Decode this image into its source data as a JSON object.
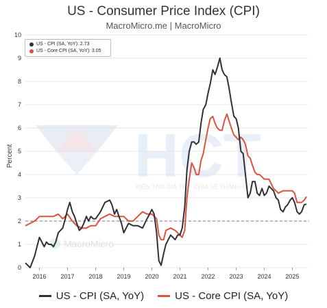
{
  "header": {
    "title": "US - Consumer Price Index (CPI)",
    "subtitle": "MacroMicro.me | MacroMicro"
  },
  "watermark": {
    "brand": "HCT",
    "tagline": "KIẾN TẠO GIÁ TRỊ - CHIA SẺ THÀNH CÔNG",
    "source_logo": "MacroMicro"
  },
  "legend_box": {
    "cpi": "US - CPI (SA, YoY): 2.73",
    "core": "US - Core CPI (SA, YoY): 3.05"
  },
  "colors": {
    "cpi": "#2f2f35",
    "core": "#d9533d",
    "reference_line": "#777777",
    "grid": "#e6e6e6"
  },
  "chart_data": {
    "type": "line",
    "title": "US - Consumer Price Index (CPI)",
    "subtitle": "MacroMicro.me | MacroMicro",
    "ylabel": "Percent",
    "xlabel": "",
    "ylim": [
      0,
      10
    ],
    "y_ticks": [
      "0",
      "1",
      "2",
      "3",
      "4",
      "5",
      "6",
      "7",
      "8",
      "9",
      "10"
    ],
    "x_range": [
      2015.5,
      2025.55
    ],
    "x_ticks": [
      "2016",
      "2017",
      "2018",
      "2019",
      "2020",
      "2021",
      "2022",
      "2023",
      "2024",
      "2025"
    ],
    "reference_line": 2,
    "grid": "horizontal",
    "legend_position": "top-left",
    "series": [
      {
        "name": "US - CPI (SA, YoY)",
        "latest": 2.73,
        "x": [
          2015.5,
          2015.67,
          2015.83,
          2016.0,
          2016.17,
          2016.25,
          2016.33,
          2016.42,
          2016.5,
          2016.58,
          2016.67,
          2016.75,
          2016.83,
          2016.92,
          2017.0,
          2017.08,
          2017.17,
          2017.25,
          2017.33,
          2017.42,
          2017.5,
          2017.58,
          2017.67,
          2017.75,
          2017.83,
          2017.92,
          2018.0,
          2018.17,
          2018.33,
          2018.5,
          2018.58,
          2018.67,
          2018.75,
          2018.83,
          2018.92,
          2019.0,
          2019.17,
          2019.33,
          2019.5,
          2019.67,
          2019.83,
          2019.92,
          2020.0,
          2020.08,
          2020.17,
          2020.25,
          2020.33,
          2020.42,
          2020.5,
          2020.67,
          2020.83,
          2020.92,
          2021.0,
          2021.08,
          2021.17,
          2021.25,
          2021.33,
          2021.42,
          2021.5,
          2021.58,
          2021.67,
          2021.75,
          2021.83,
          2021.92,
          2022.0,
          2022.08,
          2022.17,
          2022.25,
          2022.33,
          2022.42,
          2022.5,
          2022.58,
          2022.67,
          2022.75,
          2022.83,
          2022.92,
          2023.0,
          2023.08,
          2023.17,
          2023.25,
          2023.33,
          2023.42,
          2023.5,
          2023.58,
          2023.67,
          2023.75,
          2023.83,
          2023.92,
          2024.0,
          2024.08,
          2024.17,
          2024.25,
          2024.33,
          2024.42,
          2024.5,
          2024.58,
          2024.67,
          2024.75,
          2024.83,
          2024.92,
          2025.0,
          2025.08,
          2025.17,
          2025.25,
          2025.33,
          2025.42,
          2025.5
        ],
        "values": [
          0.2,
          0.0,
          0.5,
          1.3,
          0.9,
          1.1,
          1.0,
          1.0,
          0.9,
          1.1,
          1.5,
          1.6,
          1.7,
          2.1,
          2.5,
          2.8,
          2.4,
          2.2,
          1.9,
          1.6,
          1.7,
          1.9,
          2.2,
          2.0,
          2.2,
          2.1,
          2.1,
          2.4,
          2.8,
          2.9,
          2.7,
          2.3,
          2.5,
          2.2,
          1.9,
          1.5,
          1.9,
          1.8,
          1.8,
          1.7,
          2.1,
          2.3,
          2.5,
          2.3,
          1.5,
          0.3,
          0.1,
          0.6,
          1.0,
          1.4,
          1.2,
          1.4,
          1.4,
          1.7,
          2.6,
          4.2,
          5.0,
          5.4,
          5.4,
          5.3,
          5.4,
          6.2,
          6.8,
          7.0,
          7.5,
          7.9,
          8.5,
          8.3,
          8.6,
          9.0,
          8.5,
          8.3,
          8.2,
          7.7,
          7.1,
          6.5,
          6.4,
          6.0,
          5.0,
          4.9,
          4.0,
          3.0,
          3.2,
          3.7,
          3.7,
          3.2,
          3.1,
          3.4,
          3.1,
          3.2,
          3.5,
          3.4,
          3.3,
          3.0,
          2.9,
          2.5,
          2.4,
          2.6,
          2.7,
          2.9,
          3.0,
          2.8,
          2.4,
          2.3,
          2.4,
          2.7,
          2.73
        ]
      },
      {
        "name": "US - Core CPI (SA, YoY)",
        "latest": 3.05,
        "x": [
          2015.5,
          2015.67,
          2015.83,
          2016.0,
          2016.17,
          2016.33,
          2016.5,
          2016.67,
          2016.83,
          2017.0,
          2017.17,
          2017.33,
          2017.5,
          2017.67,
          2017.83,
          2018.0,
          2018.17,
          2018.33,
          2018.5,
          2018.67,
          2018.83,
          2019.0,
          2019.17,
          2019.33,
          2019.5,
          2019.67,
          2019.83,
          2020.0,
          2020.17,
          2020.25,
          2020.33,
          2020.42,
          2020.5,
          2020.67,
          2020.83,
          2021.0,
          2021.08,
          2021.17,
          2021.25,
          2021.33,
          2021.42,
          2021.5,
          2021.58,
          2021.67,
          2021.75,
          2021.83,
          2021.92,
          2022.0,
          2022.08,
          2022.17,
          2022.25,
          2022.33,
          2022.42,
          2022.5,
          2022.58,
          2022.67,
          2022.75,
          2022.83,
          2022.92,
          2023.0,
          2023.08,
          2023.17,
          2023.25,
          2023.33,
          2023.42,
          2023.5,
          2023.58,
          2023.67,
          2023.75,
          2023.83,
          2023.92,
          2024.0,
          2024.17,
          2024.33,
          2024.5,
          2024.67,
          2024.83,
          2025.0,
          2025.08,
          2025.17,
          2025.25,
          2025.33,
          2025.42,
          2025.5
        ],
        "values": [
          1.8,
          1.9,
          2.0,
          2.2,
          2.2,
          2.2,
          2.2,
          2.3,
          2.1,
          2.3,
          2.0,
          1.8,
          1.7,
          1.7,
          1.8,
          1.8,
          2.1,
          2.2,
          2.3,
          2.2,
          2.2,
          2.2,
          2.0,
          2.0,
          2.2,
          2.4,
          2.3,
          2.3,
          2.1,
          1.4,
          1.2,
          1.2,
          1.6,
          1.7,
          1.6,
          1.4,
          1.3,
          1.6,
          3.0,
          3.8,
          4.5,
          4.3,
          4.0,
          4.0,
          4.6,
          4.9,
          5.5,
          6.0,
          6.4,
          6.5,
          6.2,
          6.0,
          5.9,
          5.9,
          6.3,
          6.6,
          6.3,
          6.0,
          5.7,
          5.6,
          5.5,
          5.6,
          5.5,
          5.3,
          4.8,
          4.7,
          4.4,
          4.1,
          4.0,
          4.0,
          3.9,
          3.8,
          3.8,
          3.4,
          3.2,
          3.3,
          3.3,
          3.3,
          3.2,
          2.8,
          2.8,
          2.8,
          2.9,
          3.05
        ]
      }
    ]
  }
}
